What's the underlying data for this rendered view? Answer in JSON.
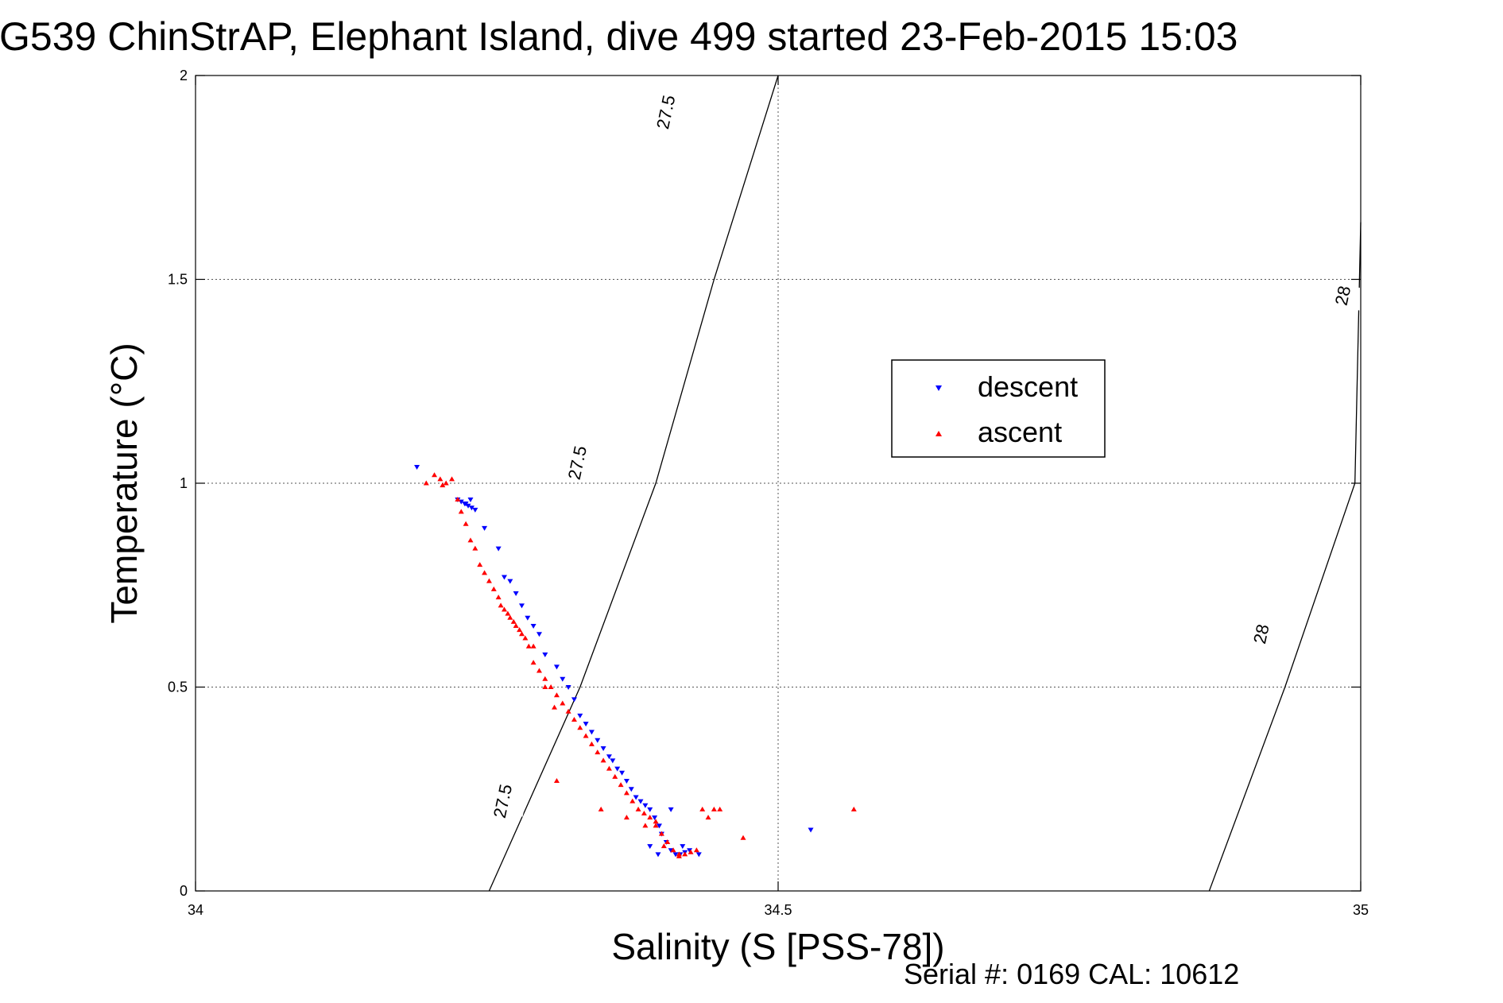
{
  "chart_data": {
    "type": "scatter",
    "title": "G539 ChinStrAP, Elephant Island, dive 499 started 23-Feb-2015 15:03",
    "xlabel": "Salinity (S [PSS-78])",
    "ylabel": "Temperature (°C)",
    "xlim": [
      34,
      35
    ],
    "ylim": [
      0,
      2
    ],
    "xticks": [
      "34",
      "34.5",
      "35"
    ],
    "yticks": [
      "0",
      "0.5",
      "1",
      "1.5",
      "2"
    ],
    "grid": true,
    "legend_placement": "center-right",
    "footer": "Serial #: 0169 CAL: 10612",
    "isopycnals": [
      {
        "label": "27.5",
        "points": [
          [
            34.252,
            0
          ],
          [
            34.33,
            0.5
          ],
          [
            34.395,
            1.0
          ],
          [
            34.445,
            1.5
          ],
          [
            34.5,
            2.0
          ]
        ]
      },
      {
        "label": "28",
        "points": [
          [
            34.87,
            0
          ],
          [
            34.935,
            0.5
          ],
          [
            34.995,
            1.0
          ],
          [
            35.0,
            1.64
          ]
        ]
      }
    ],
    "isopycnal_labels": [
      {
        "text": "27.5",
        "x": 34.264,
        "y": 0.22
      },
      {
        "text": "27.5",
        "x": 34.328,
        "y": 1.05
      },
      {
        "text": "27.5",
        "x": 34.404,
        "y": 1.91
      },
      {
        "text": "28",
        "x": 34.915,
        "y": 0.63
      },
      {
        "text": "28",
        "x": 34.985,
        "y": 1.46
      }
    ],
    "series": [
      {
        "name": "descent",
        "color": "#0000ff",
        "marker": "triangle-down",
        "x": [
          34.19,
          34.225,
          34.228,
          34.231,
          34.234,
          34.237,
          34.24,
          34.232,
          34.236,
          34.248,
          34.26,
          34.265,
          34.27,
          34.275,
          34.28,
          34.285,
          34.29,
          34.295,
          34.3,
          34.31,
          34.315,
          34.32,
          34.325,
          34.33,
          34.335,
          34.34,
          34.345,
          34.35,
          34.355,
          34.358,
          34.362,
          34.366,
          34.37,
          34.374,
          34.378,
          34.382,
          34.386,
          34.39,
          34.394,
          34.398,
          34.4,
          34.404,
          34.408,
          34.412,
          34.416,
          34.42,
          34.397,
          34.39,
          34.408,
          34.418,
          34.432,
          34.424,
          34.528
        ],
        "y": [
          1.04,
          0.96,
          0.955,
          0.95,
          0.945,
          0.94,
          0.935,
          0.95,
          0.96,
          0.89,
          0.84,
          0.77,
          0.76,
          0.73,
          0.7,
          0.67,
          0.65,
          0.63,
          0.58,
          0.55,
          0.52,
          0.5,
          0.47,
          0.43,
          0.41,
          0.39,
          0.37,
          0.35,
          0.33,
          0.32,
          0.3,
          0.29,
          0.27,
          0.25,
          0.23,
          0.22,
          0.21,
          0.2,
          0.18,
          0.16,
          0.14,
          0.12,
          0.1,
          0.09,
          0.09,
          0.095,
          0.09,
          0.11,
          0.2,
          0.11,
          0.09,
          0.1,
          0.15
        ]
      },
      {
        "name": "ascent",
        "color": "#ff0000",
        "marker": "triangle-up",
        "x": [
          34.198,
          34.205,
          34.21,
          34.212,
          34.215,
          34.22,
          34.225,
          34.228,
          34.232,
          34.236,
          34.24,
          34.244,
          34.248,
          34.252,
          34.256,
          34.26,
          34.262,
          34.265,
          34.268,
          34.27,
          34.273,
          34.275,
          34.278,
          34.28,
          34.283,
          34.286,
          34.29,
          34.295,
          34.3,
          34.305,
          34.31,
          34.315,
          34.32,
          34.325,
          34.33,
          34.335,
          34.34,
          34.345,
          34.35,
          34.355,
          34.36,
          34.365,
          34.37,
          34.375,
          34.38,
          34.385,
          34.39,
          34.395,
          34.4,
          34.405,
          34.41,
          34.415,
          34.42,
          34.425,
          34.43,
          34.435,
          34.44,
          34.445,
          34.31,
          34.348,
          34.37,
          34.386,
          34.395,
          34.402,
          34.45,
          34.47,
          34.565,
          34.29,
          34.3,
          34.308,
          34.415
        ],
        "y": [
          1.0,
          1.02,
          1.01,
          0.995,
          1.0,
          1.01,
          0.96,
          0.93,
          0.9,
          0.86,
          0.84,
          0.8,
          0.78,
          0.76,
          0.74,
          0.72,
          0.7,
          0.69,
          0.68,
          0.67,
          0.66,
          0.65,
          0.64,
          0.63,
          0.62,
          0.6,
          0.56,
          0.54,
          0.52,
          0.5,
          0.48,
          0.46,
          0.44,
          0.42,
          0.4,
          0.38,
          0.36,
          0.34,
          0.32,
          0.3,
          0.28,
          0.26,
          0.24,
          0.22,
          0.2,
          0.19,
          0.18,
          0.16,
          0.14,
          0.12,
          0.1,
          0.09,
          0.09,
          0.095,
          0.1,
          0.2,
          0.18,
          0.2,
          0.27,
          0.2,
          0.18,
          0.16,
          0.17,
          0.11,
          0.2,
          0.13,
          0.2,
          0.6,
          0.5,
          0.45,
          0.085
        ]
      }
    ]
  }
}
